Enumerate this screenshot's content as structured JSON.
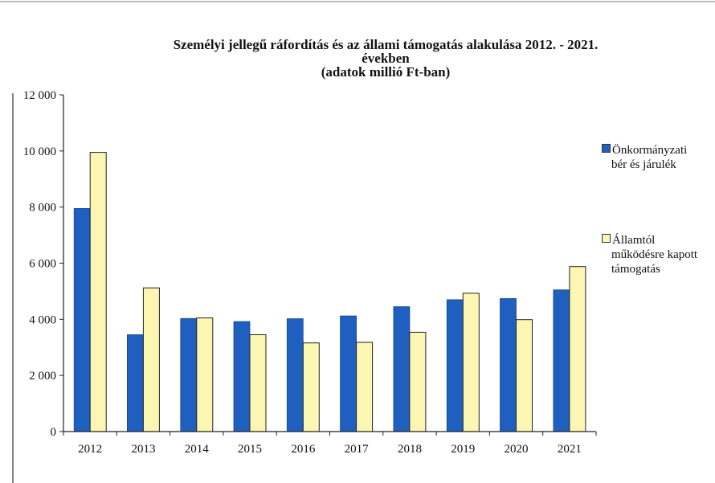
{
  "title": {
    "line1": "Személyi jellegű ráfordítás és az állami támogatás alakulása 2012. - 2021.",
    "line2": "években",
    "line3": "(adatok millió Ft-ban)"
  },
  "chart_data": {
    "type": "bar",
    "title": "Személyi jellegű ráfordítás és az állami támogatás alakulása 2012. - 2021. években (adatok millió Ft-ban)",
    "categories": [
      "2012",
      "2013",
      "2014",
      "2015",
      "2016",
      "2017",
      "2018",
      "2019",
      "2020",
      "2021"
    ],
    "series": [
      {
        "name": "Önkormányzati bér és járulék",
        "color": "#1f5fbf",
        "values": [
          7950,
          3450,
          4030,
          3920,
          4020,
          4120,
          4450,
          4700,
          4740,
          5050
        ]
      },
      {
        "name": "Államtól működésre kapott támogatás",
        "color": "#fbf7b2",
        "values": [
          9950,
          5120,
          4050,
          3450,
          3160,
          3180,
          3540,
          4930,
          3990,
          5880
        ]
      }
    ],
    "ylim": [
      0,
      12000
    ],
    "yticks": [
      "0",
      "2 000",
      "4 000",
      "6 000",
      "8 000",
      "10 000",
      "12 000"
    ],
    "grid": false,
    "legend": "right"
  },
  "legend": {
    "item1_line1": "Önkormányzati",
    "item1_line2": "bér és járulék",
    "item2_line1": "Államtól",
    "item2_line2": "működésre kapott",
    "item2_line3": "támogatás"
  }
}
